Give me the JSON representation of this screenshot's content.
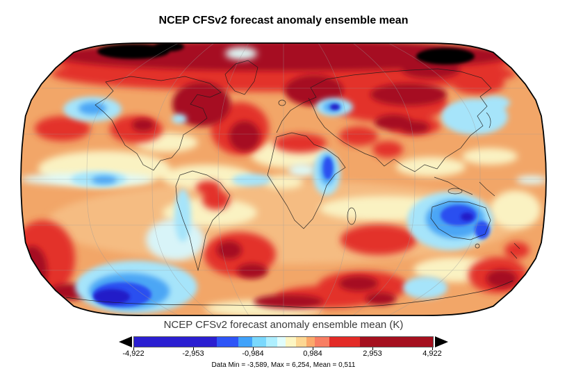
{
  "title": "NCEP CFSv2 forecast anomaly ensemble mean",
  "colorbar": {
    "label": "NCEP CFSv2 forecast anomaly ensemble mean (K)",
    "ticks": [
      "-4,922",
      "-2,953",
      "-0,984",
      "0,984",
      "2,953",
      "4,922"
    ],
    "out_of_range_color": "#000000",
    "arrow_color": "#000000",
    "segments": [
      {
        "color": "#2B1FD1",
        "width_pct": 27.7
      },
      {
        "color": "#2E55F7",
        "width_pct": 7.2
      },
      {
        "color": "#41A2FA",
        "width_pct": 4.7
      },
      {
        "color": "#7AD8FD",
        "width_pct": 4.7
      },
      {
        "color": "#AEEFFF",
        "width_pct": 3.5
      },
      {
        "color": "#E0FDFD",
        "width_pct": 2.8
      },
      {
        "color": "#FDF6C3",
        "width_pct": 3.5
      },
      {
        "color": "#FDD793",
        "width_pct": 3.5
      },
      {
        "color": "#FBA96B",
        "width_pct": 2.8
      },
      {
        "color": "#F87E63",
        "width_pct": 4.9
      },
      {
        "color": "#E32B27",
        "width_pct": 10.2
      },
      {
        "color": "#A5101F",
        "width_pct": 24.5
      }
    ]
  },
  "stats": "Data Min = -3,589, Max = 6,254, Mean = 0,511",
  "chart_data": {
    "type": "heatmap",
    "title": "NCEP CFSv2 forecast anomaly ensemble mean",
    "units": "K",
    "projection": "global Robinson-style ellipse, graticule ~45 deg lon / 30 deg lat",
    "colorbar_ticks": [
      -4.922,
      -2.953,
      -0.984,
      0.984,
      2.953,
      4.922
    ],
    "colorbar_range": [
      -4.922,
      4.922
    ],
    "approx_level_boundaries": [
      -4.922,
      -2.2,
      -1.5,
      -1.0,
      -0.55,
      -0.25,
      0.05,
      0.4,
      0.7,
      1.0,
      1.5,
      2.45,
      4.922
    ],
    "data_min": -3.589,
    "data_max": 6.254,
    "data_mean": 0.511,
    "notable_anomalies": [
      {
        "region": "Arctic / high northern latitudes",
        "sign": "strong warm",
        "note": "dark red band with near-black above-scale maxima north of Canada and Siberia"
      },
      {
        "region": "Siberia and northern Russia",
        "sign": "strong warm"
      },
      {
        "region": "Hudson Bay / Baffin Island and North Atlantic",
        "sign": "strong warm"
      },
      {
        "region": "Western United States",
        "sign": "warm"
      },
      {
        "region": "Tibet / western China",
        "sign": "strong warm"
      },
      {
        "region": "South Atlantic east of Argentina",
        "sign": "strong warm"
      },
      {
        "region": "Southern Indian Ocean and Southern Ocean near Antarctica",
        "sign": "strong warm"
      },
      {
        "region": "Turkey / Caspian region",
        "sign": "strong cool"
      },
      {
        "region": "East Africa",
        "sign": "strong cool"
      },
      {
        "region": "Australia west and southeast",
        "sign": "strong cool"
      },
      {
        "region": "South Pacific near 60S",
        "sign": "strong cool",
        "note": "deepest blue minimum"
      },
      {
        "region": "Northeast Pacific",
        "sign": "cool"
      },
      {
        "region": "Equatorial eastern Pacific",
        "sign": "slightly cool"
      },
      {
        "region": "Sea of Okhotsk / Japan region",
        "sign": "cool"
      }
    ]
  }
}
